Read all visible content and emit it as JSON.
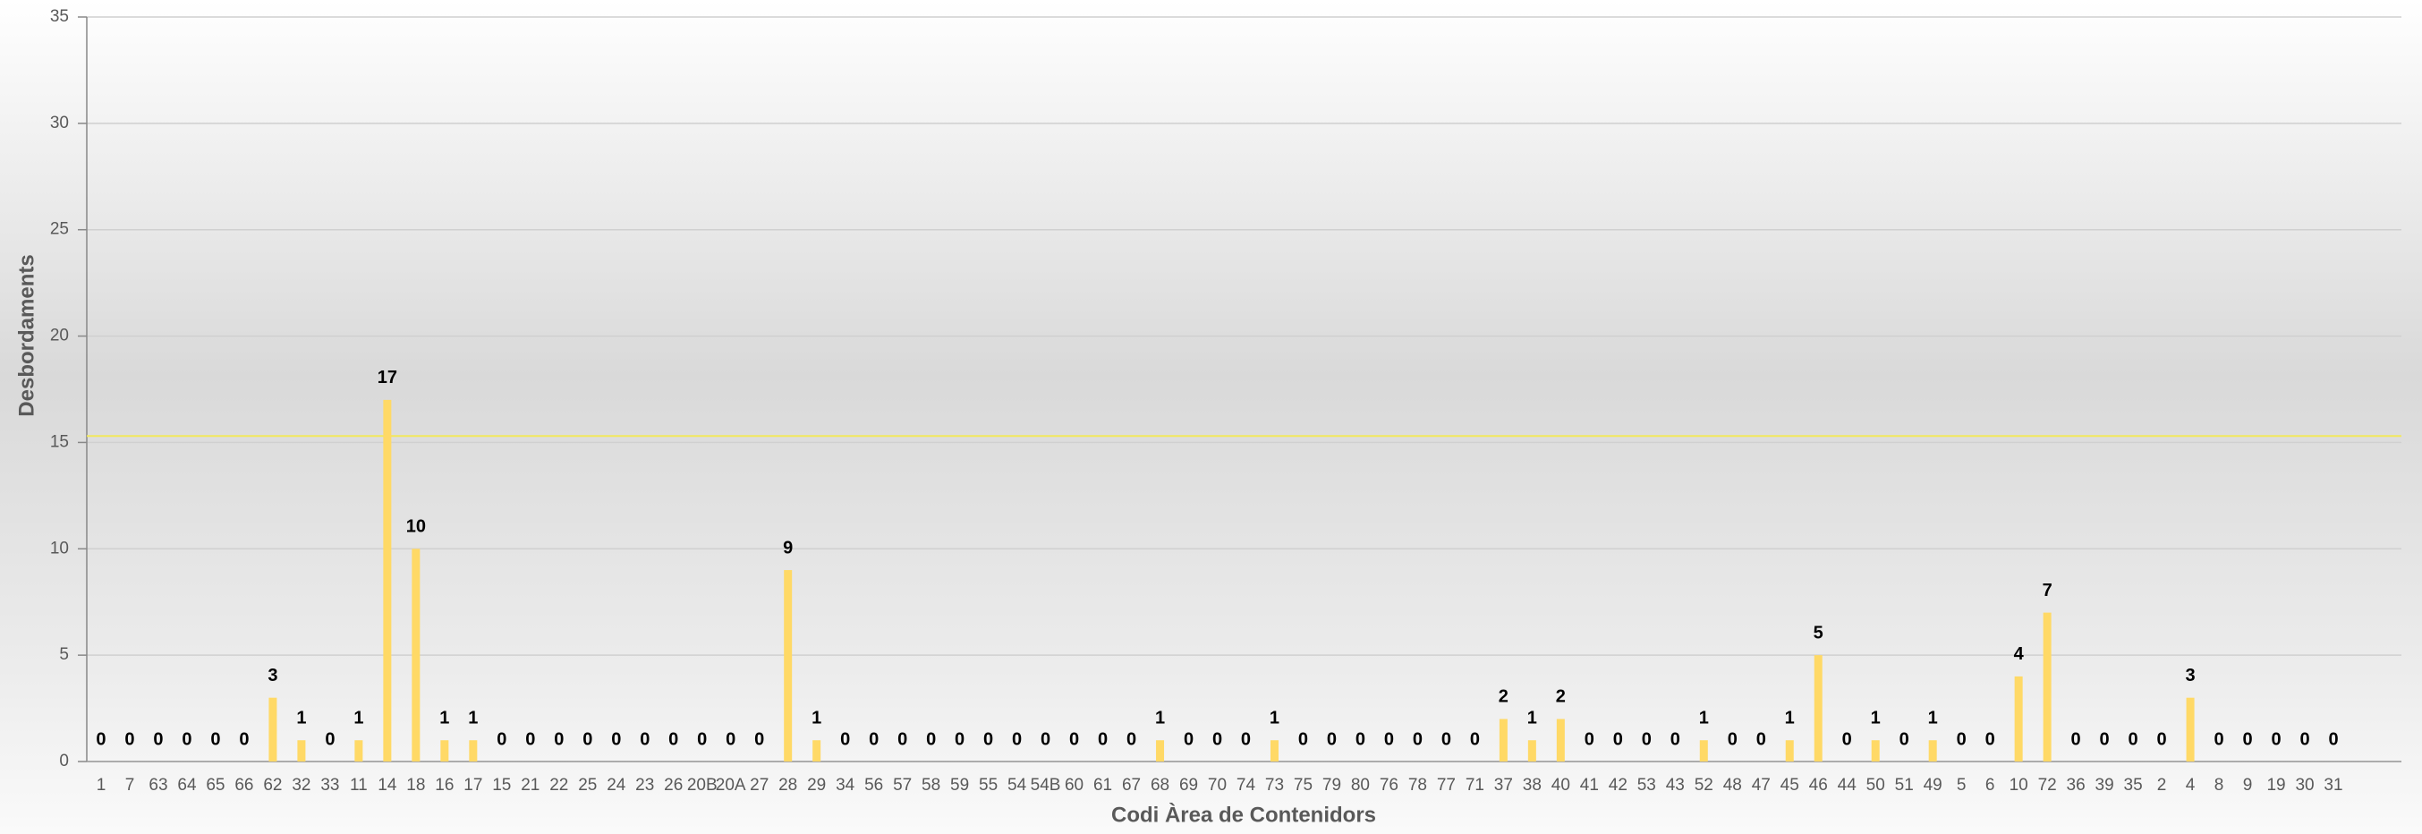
{
  "chart_data": {
    "type": "bar",
    "x_label": "Codi Àrea de Contenidors",
    "y_label": "Desbordaments",
    "categories": [
      "1",
      "7",
      "63",
      "64",
      "65",
      "66",
      "62",
      "32",
      "33",
      "11",
      "14",
      "18",
      "16",
      "17",
      "15",
      "21",
      "22",
      "25",
      "24",
      "23",
      "26",
      "20B",
      "20A",
      "27",
      "28",
      "29",
      "34",
      "56",
      "57",
      "58",
      "59",
      "55",
      "54",
      "54B",
      "60",
      "61",
      "67",
      "68",
      "69",
      "70",
      "74",
      "73",
      "75",
      "79",
      "80",
      "76",
      "78",
      "77",
      "71",
      "37",
      "38",
      "40",
      "41",
      "42",
      "53",
      "43",
      "52",
      "48",
      "47",
      "45",
      "46",
      "44",
      "50",
      "51",
      "49",
      "5",
      "6",
      "10",
      "72",
      "36",
      "39",
      "35",
      "2",
      "4",
      "8",
      "9",
      "19",
      "30",
      "31"
    ],
    "values": [
      0,
      0,
      0,
      0,
      0,
      0,
      3,
      1,
      0,
      1,
      17,
      10,
      1,
      1,
      0,
      0,
      0,
      0,
      0,
      0,
      0,
      0,
      0,
      0,
      9,
      1,
      0,
      0,
      0,
      0,
      0,
      0,
      0,
      0,
      0,
      0,
      0,
      1,
      0,
      0,
      0,
      1,
      0,
      0,
      0,
      0,
      0,
      0,
      0,
      2,
      1,
      2,
      0,
      0,
      0,
      0,
      1,
      0,
      0,
      1,
      5,
      0,
      1,
      0,
      1,
      0,
      0,
      4,
      7,
      0,
      0,
      0,
      0,
      3,
      0,
      0,
      0,
      0,
      0
    ],
    "color": "#ffd966",
    "ylim": [
      0,
      35
    ],
    "yticks": [
      0,
      5,
      10,
      15,
      20,
      25,
      30,
      35
    ],
    "grid": true,
    "reference_line": {
      "value": 15.3,
      "color": "#f2e85c"
    }
  }
}
